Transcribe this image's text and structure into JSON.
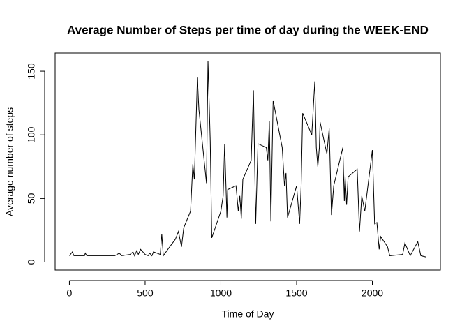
{
  "chart_data": {
    "type": "line",
    "title": "Average Number of Steps per time of day during the WEEK-END",
    "x_label": "Time of Day",
    "y_label": "Average number of steps",
    "color": "#000000",
    "x": [
      0,
      20,
      30,
      100,
      105,
      115,
      300,
      330,
      345,
      400,
      420,
      430,
      445,
      455,
      470,
      500,
      520,
      530,
      545,
      555,
      600,
      610,
      620,
      650,
      700,
      720,
      740,
      755,
      800,
      815,
      825,
      845,
      855,
      905,
      915,
      930,
      940,
      1000,
      1015,
      1025,
      1040,
      1045,
      1100,
      1115,
      1125,
      1135,
      1145,
      1200,
      1215,
      1230,
      1245,
      1300,
      1310,
      1320,
      1330,
      1345,
      1405,
      1420,
      1430,
      1440,
      1500,
      1520,
      1530,
      1540,
      1600,
      1620,
      1630,
      1640,
      1650,
      1655,
      1700,
      1715,
      1720,
      1730,
      1745,
      1805,
      1815,
      1820,
      1830,
      1840,
      1900,
      1915,
      1930,
      1950,
      2000,
      2015,
      2030,
      2045,
      2055,
      2100,
      2115,
      2200,
      2215,
      2250,
      2300,
      2320,
      2355
    ],
    "values": [
      5,
      8,
      5,
      5,
      7,
      5,
      5,
      7,
      5,
      6,
      8,
      5,
      9,
      6,
      10,
      6,
      5,
      7,
      5,
      8,
      6,
      22,
      5,
      10,
      18,
      24,
      12,
      27,
      40,
      77,
      65,
      145,
      120,
      62,
      158,
      95,
      19,
      40,
      52,
      93,
      35,
      57,
      60,
      40,
      52,
      34,
      65,
      80,
      135,
      30,
      93,
      90,
      80,
      111,
      32,
      127,
      90,
      60,
      70,
      35,
      60,
      30,
      60,
      117,
      100,
      142,
      90,
      75,
      90,
      110,
      85,
      105,
      83,
      37,
      60,
      90,
      48,
      68,
      45,
      67,
      73,
      24,
      52,
      40,
      88,
      30,
      31,
      10,
      20,
      12,
      5,
      6,
      15,
      5,
      16,
      5,
      4
    ],
    "xlim": [
      -94.2,
      2449.2
    ],
    "ylim": [
      -6.3,
      164.3
    ],
    "xticks": [
      0,
      500,
      1000,
      1500,
      2000
    ],
    "yticks": [
      0,
      50,
      100,
      150
    ]
  }
}
